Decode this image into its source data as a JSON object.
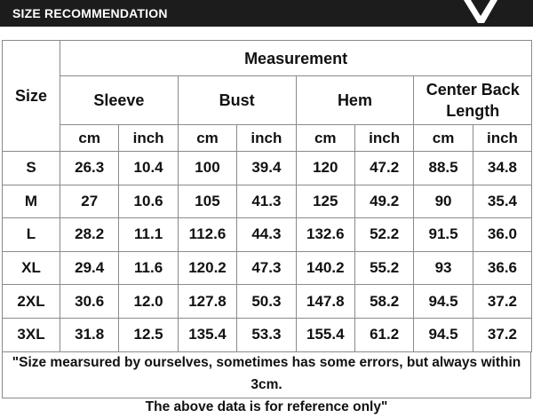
{
  "header": {
    "title": "SIZE RECOMMENDATION"
  },
  "table": {
    "size_label": "Size",
    "measurement": "Measurement",
    "groups": [
      "Sleeve",
      "Bust",
      "Hem",
      "Center Back Length"
    ],
    "units": [
      "cm",
      "inch",
      "cm",
      "inch",
      "cm",
      "inch",
      "cm",
      "inch"
    ],
    "rows": [
      [
        "S",
        "26.3",
        "10.4",
        "100",
        "39.4",
        "120",
        "47.2",
        "88.5",
        "34.8"
      ],
      [
        "M",
        "27",
        "10.6",
        "105",
        "41.3",
        "125",
        "49.2",
        "90",
        "35.4"
      ],
      [
        "L",
        "28.2",
        "11.1",
        "112.6",
        "44.3",
        "132.6",
        "52.2",
        "91.5",
        "36.0"
      ],
      [
        "XL",
        "29.4",
        "11.6",
        "120.2",
        "47.3",
        "140.2",
        "55.2",
        "93",
        "36.6"
      ],
      [
        "2XL",
        "30.6",
        "12.0",
        "127.8",
        "50.3",
        "147.8",
        "58.2",
        "94.5",
        "37.2"
      ],
      [
        "3XL",
        "31.8",
        "12.5",
        "135.4",
        "53.3",
        "155.4",
        "61.2",
        "94.5",
        "37.2"
      ]
    ]
  },
  "footer": {
    "lines": [
      "\"Size mearsured by ourselves, sometimes has some errors, but always within 3cm.",
      "The above data is for reference only\""
    ]
  }
}
